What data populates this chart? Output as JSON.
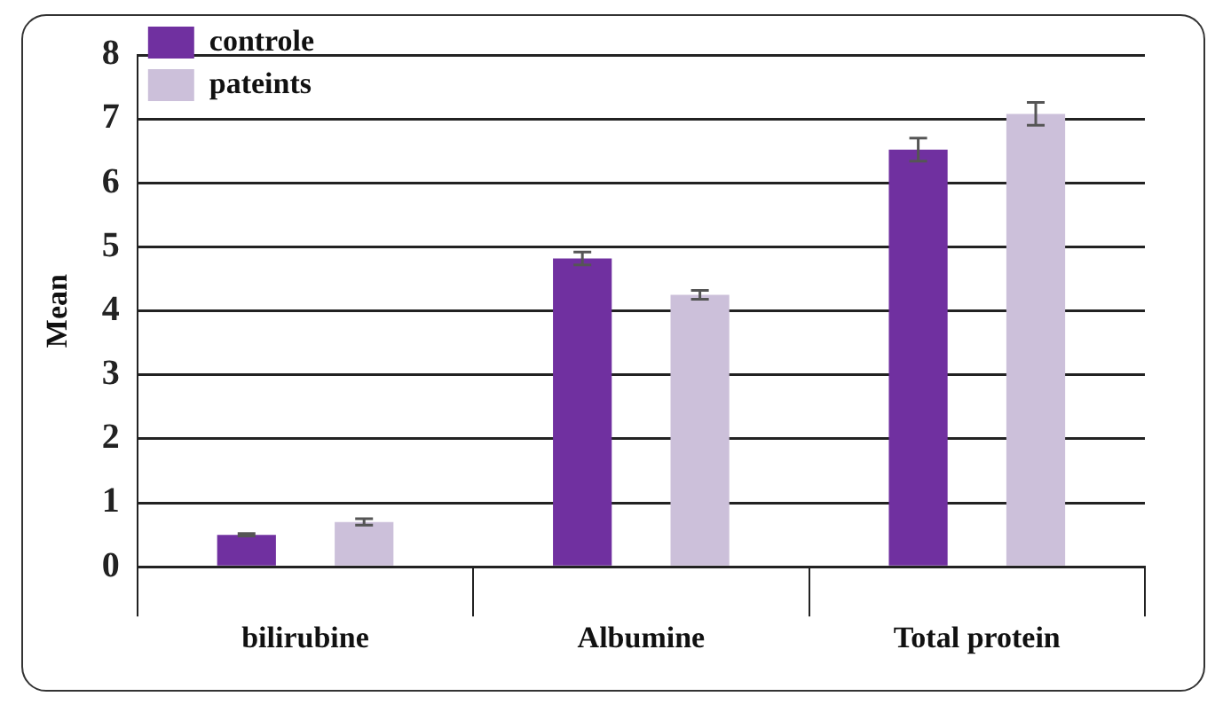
{
  "chart_data": {
    "type": "bar",
    "ylabel": "Mean",
    "categories": [
      "bilirubine",
      "Albumine",
      "Total protein"
    ],
    "series": [
      {
        "name": "controle",
        "color": "#7030a0",
        "values": [
          0.5,
          4.82,
          6.52
        ],
        "errors": [
          0.02,
          0.1,
          0.18
        ]
      },
      {
        "name": "pateints",
        "color": "#ccc0da",
        "values": [
          0.7,
          4.25,
          7.08
        ],
        "errors": [
          0.05,
          0.07,
          0.18
        ]
      }
    ],
    "ylim": [
      0,
      8
    ],
    "yticks": [
      0,
      1,
      2,
      3,
      4,
      5,
      6,
      7,
      8
    ],
    "grid": "y",
    "legend": "top left"
  }
}
